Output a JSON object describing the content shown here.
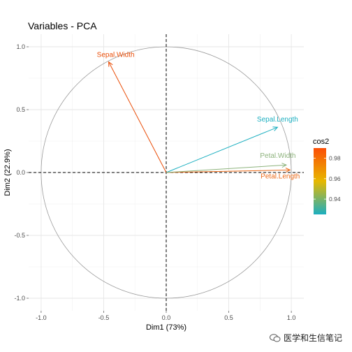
{
  "chart_data": {
    "type": "scatter",
    "title": "Variables - PCA",
    "xlabel": "Dim1 (73%)",
    "ylabel": "Dim2 (22.9%)",
    "xlim": [
      -1.1,
      1.1
    ],
    "ylim": [
      -1.1,
      1.1
    ],
    "xticks": [
      -1.0,
      -0.5,
      0.0,
      0.5,
      1.0
    ],
    "yticks": [
      -1.0,
      -0.5,
      0.0,
      0.5,
      1.0
    ],
    "xtick_labels": [
      "-1.0",
      "-0.5",
      "0.0",
      "0.5",
      "1.0"
    ],
    "ytick_labels": [
      "-1.0",
      "-0.5",
      "0.0",
      "0.5",
      "1.0"
    ],
    "grid": true,
    "correlation_circle": true,
    "variables": [
      {
        "name": "Sepal.Length",
        "x": 0.89,
        "y": 0.36,
        "cos2": 0.925,
        "color": "#1cafc0"
      },
      {
        "name": "Sepal.Width",
        "x": -0.46,
        "y": 0.88,
        "cos2": 0.985,
        "color": "#ea4f0a"
      },
      {
        "name": "Petal.Length",
        "x": 0.99,
        "y": 0.02,
        "cos2": 0.982,
        "color": "#ec6a18"
      },
      {
        "name": "Petal.Width",
        "x": 0.96,
        "y": 0.06,
        "cos2": 0.935,
        "color": "#8db37c"
      }
    ],
    "legend": {
      "title": "cos2",
      "position": "right",
      "ticks": [
        0.98,
        0.96,
        0.94
      ],
      "tick_labels": [
        "0.98",
        "0.96",
        "0.94"
      ],
      "range": [
        0.925,
        0.99
      ],
      "gradient": [
        "#1cafc0",
        "#e7b800",
        "#fc4e07"
      ]
    }
  },
  "watermark": {
    "text": "医学和生信笔记"
  }
}
